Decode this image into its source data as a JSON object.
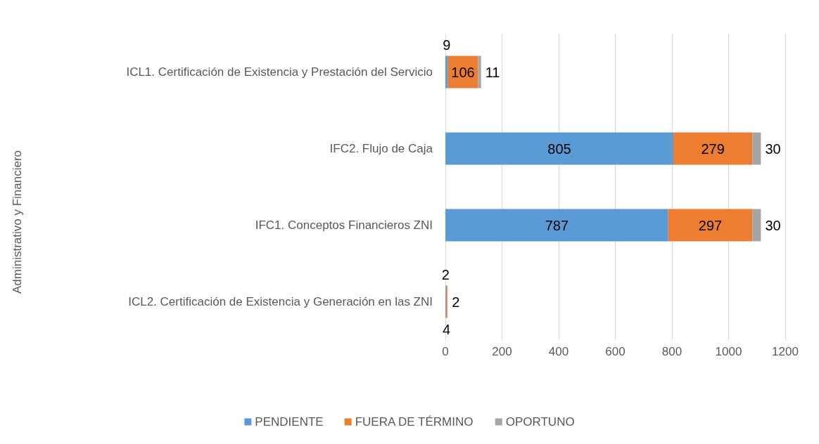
{
  "chart_data": {
    "type": "bar",
    "orientation": "horizontal",
    "stacked": true,
    "annotations": [
      "Administrativo y Financiero"
    ],
    "categories": [
      "ICL1. Certificación de Existencia y Prestación del Servicio",
      "IFC2. Flujo de Caja",
      "IFC1. Conceptos Financieros ZNI",
      "ICL2. Certificación de Existencia y Generación en las ZNI"
    ],
    "series": [
      {
        "name": "PENDIENTE",
        "color": "#5b9bd5",
        "values": [
          9,
          805,
          787,
          2
        ]
      },
      {
        "name": "FUERA DE TÉRMINO",
        "color": "#ed7d31",
        "values": [
          106,
          279,
          297,
          4
        ]
      },
      {
        "name": "OPORTUNO",
        "color": "#a5a5a5",
        "values": [
          11,
          30,
          30,
          2
        ]
      }
    ],
    "xlim": [
      0,
      1200
    ],
    "xticks": [
      0,
      200,
      400,
      600,
      800,
      1000,
      1200
    ],
    "grid": "x",
    "legend": "bottom",
    "data_labels": true
  }
}
